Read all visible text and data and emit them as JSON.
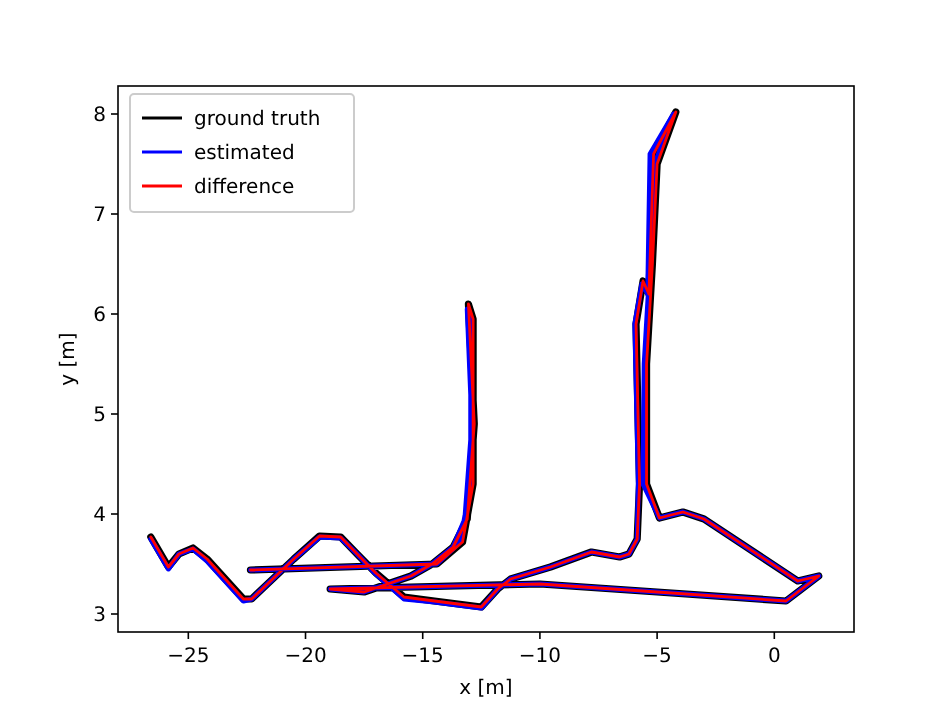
{
  "chart_data": {
    "type": "line",
    "xlabel": "x [m]",
    "ylabel": "y [m]",
    "xlim": [
      -28,
      3.4
    ],
    "ylim": [
      2.82,
      8.28
    ],
    "xticks": [
      -25,
      -20,
      -15,
      -10,
      -5,
      0
    ],
    "yticks": [
      3,
      4,
      5,
      6,
      7,
      8
    ],
    "grid": false,
    "legend": "top left",
    "marker": "none",
    "line_style": "solid",
    "series": [
      {
        "name": "ground truth",
        "color": "#000000",
        "x": [
          -26.6,
          -25.85,
          -25.4,
          -24.8,
          -24.2,
          -22.65,
          -22.3,
          -20.5,
          -19.4,
          -18.5,
          -17.8,
          -17,
          -15.8,
          -14.5,
          -12.5,
          -11.8,
          -11.25,
          -9.55,
          -7.8,
          -6.6,
          -6.2,
          -5.85,
          -5.75,
          -5.9,
          -5.6,
          -5.35,
          -5.15,
          -4.2,
          -5.0,
          -5.2,
          -5.45,
          -5.45,
          -4.9,
          -3.9,
          -3,
          1.0,
          1.9,
          0.5,
          -5,
          -10,
          -18.95,
          -17.5,
          -15.5,
          -14.6,
          -13.7,
          -13.1,
          -12.8,
          -13.05,
          -12.85,
          -12.85,
          -13.3,
          -14.4,
          -22.35
        ],
        "values": [
          3.77,
          3.47,
          3.6,
          3.66,
          3.55,
          3.15,
          3.15,
          3.55,
          3.78,
          3.77,
          3.6,
          3.41,
          3.17,
          3.13,
          3.07,
          3.25,
          3.35,
          3.47,
          3.62,
          3.57,
          3.6,
          3.75,
          4.3,
          5.9,
          6.33,
          6.2,
          7.6,
          8.02,
          7.5,
          6.5,
          5.5,
          4.3,
          3.96,
          4.02,
          3.95,
          3.33,
          3.38,
          3.13,
          3.22,
          3.3,
          3.25,
          3.22,
          3.38,
          3.5,
          3.67,
          3.95,
          4.9,
          6.1,
          5.95,
          4.3,
          3.72,
          3.5,
          3.44
        ]
      },
      {
        "name": "estimated",
        "color": "#0000ff",
        "x": [
          -26.6,
          -25.85,
          -25.4,
          -24.8,
          -24.2,
          -22.65,
          -22.3,
          -20.5,
          -19.4,
          -18.5,
          -17.8,
          -17,
          -15.8,
          -14.5,
          -12.5,
          -11.8,
          -11.25,
          -9.55,
          -7.8,
          -6.6,
          -6.2,
          -5.85,
          -5.8,
          -5.95,
          -5.65,
          -5.4,
          -5.3,
          -4.3,
          -5.1,
          -5.3,
          -5.55,
          -5.6,
          -4.9,
          -3.9,
          -3,
          1.0,
          1.9,
          0.5,
          -5,
          -10,
          -18.95,
          -17.5,
          -15.5,
          -14.6,
          -13.7,
          -13.2,
          -12.9,
          -13.1,
          -12.95,
          -12.95,
          -13.4,
          -14.4,
          -22.35
        ],
        "values": [
          3.75,
          3.45,
          3.6,
          3.65,
          3.53,
          3.13,
          3.15,
          3.55,
          3.77,
          3.76,
          3.6,
          3.4,
          3.15,
          3.12,
          3.06,
          3.25,
          3.35,
          3.47,
          3.62,
          3.57,
          3.6,
          3.75,
          4.3,
          5.9,
          6.3,
          6.2,
          7.6,
          8.0,
          7.5,
          6.5,
          5.5,
          4.3,
          3.96,
          4.02,
          3.95,
          3.33,
          3.38,
          3.13,
          3.22,
          3.3,
          3.25,
          3.22,
          3.38,
          3.5,
          3.67,
          3.95,
          4.9,
          6.05,
          5.95,
          4.3,
          3.72,
          3.5,
          3.44
        ]
      },
      {
        "name": "difference",
        "color": "#ff0000",
        "x": [
          -26.6,
          -25.85,
          -25.4,
          -24.8,
          -24.2,
          -22.65,
          -22.3,
          -20.5,
          -19.4,
          -18.5,
          -17.8,
          -17,
          -15.8,
          -14.5,
          -12.5,
          -11.8,
          -11.25,
          -9.55,
          -7.8,
          -6.6,
          -6.2,
          -5.85,
          -5.75,
          -5.9,
          -5.6,
          -5.35,
          -5.15,
          -4.2,
          -5.0,
          -5.2,
          -5.45,
          -5.45,
          -4.9,
          -3.9,
          -3,
          1.0,
          1.9,
          0.5,
          -5,
          -10,
          -18.95,
          -17.5,
          -15.5,
          -14.6,
          -13.7,
          -13.1,
          -12.8,
          -13.05,
          -12.85,
          -12.85,
          -13.3,
          -14.4,
          -22.35
        ],
        "values": [
          3.77,
          3.47,
          3.6,
          3.66,
          3.55,
          3.15,
          3.15,
          3.55,
          3.78,
          3.77,
          3.6,
          3.41,
          3.17,
          3.13,
          3.07,
          3.25,
          3.35,
          3.47,
          3.62,
          3.57,
          3.6,
          3.75,
          4.3,
          5.9,
          6.33,
          6.2,
          7.6,
          8.02,
          7.5,
          6.5,
          5.5,
          4.3,
          3.96,
          4.02,
          3.95,
          3.33,
          3.38,
          3.13,
          3.22,
          3.3,
          3.25,
          3.22,
          3.38,
          3.5,
          3.67,
          3.95,
          4.9,
          6.1,
          5.95,
          4.3,
          3.72,
          3.5,
          3.44
        ]
      }
    ]
  }
}
